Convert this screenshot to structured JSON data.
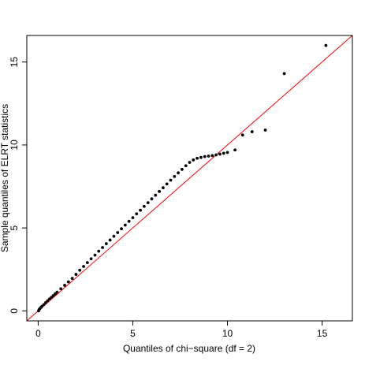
{
  "chart_data": {
    "type": "scatter",
    "title": "",
    "xlabel": "Quantiles of chi−square (df = 2)",
    "ylabel": "Sample quantiles of ELRT statistics",
    "xlim": [
      -0.6,
      16.6
    ],
    "ylim": [
      -0.6,
      16.6
    ],
    "xticks": [
      0,
      5,
      10,
      15
    ],
    "yticks": [
      0,
      5,
      10,
      15
    ],
    "xtick_labels": [
      "0",
      "5",
      "10",
      "15"
    ],
    "ytick_labels": [
      "0",
      "5",
      "10",
      "15"
    ],
    "grid": false,
    "point_color": "#000000",
    "reference_line": {
      "type": "y=x",
      "color": "#ff0000"
    },
    "series": [
      {
        "x": [
          0.02,
          0.05,
          0.1,
          0.15,
          0.2,
          0.3,
          0.4,
          0.5,
          0.6,
          0.7,
          0.8,
          0.9,
          1.0,
          1.2,
          1.4,
          1.6,
          1.8,
          2.0,
          2.2,
          2.4,
          2.6,
          2.8,
          3.0,
          3.2,
          3.4,
          3.6,
          3.8,
          4.0,
          4.2,
          4.4,
          4.6,
          4.8,
          5.0,
          5.2,
          5.4,
          5.6,
          5.8,
          6.0,
          6.2,
          6.4,
          6.6,
          6.8,
          7.0,
          7.2,
          7.4,
          7.6,
          7.8,
          8.0,
          8.2,
          8.4,
          8.6,
          8.8,
          9.0,
          9.2,
          9.4,
          9.6,
          9.8,
          10.0,
          10.4,
          10.8,
          11.3,
          12.0,
          13.0,
          15.2
        ],
        "y": [
          0.0,
          0.08,
          0.15,
          0.21,
          0.28,
          0.38,
          0.5,
          0.61,
          0.72,
          0.82,
          0.92,
          1.03,
          1.13,
          1.33,
          1.54,
          1.75,
          1.96,
          2.2,
          2.45,
          2.68,
          2.91,
          3.14,
          3.36,
          3.6,
          3.82,
          4.05,
          4.27,
          4.5,
          4.72,
          4.95,
          5.17,
          5.4,
          5.62,
          5.85,
          6.07,
          6.3,
          6.52,
          6.75,
          6.97,
          7.2,
          7.42,
          7.65,
          7.88,
          8.1,
          8.32,
          8.53,
          8.75,
          8.95,
          9.1,
          9.2,
          9.25,
          9.3,
          9.33,
          9.36,
          9.4,
          9.45,
          9.5,
          9.55,
          9.7,
          10.6,
          10.8,
          10.9,
          14.3,
          16.0
        ]
      }
    ]
  }
}
